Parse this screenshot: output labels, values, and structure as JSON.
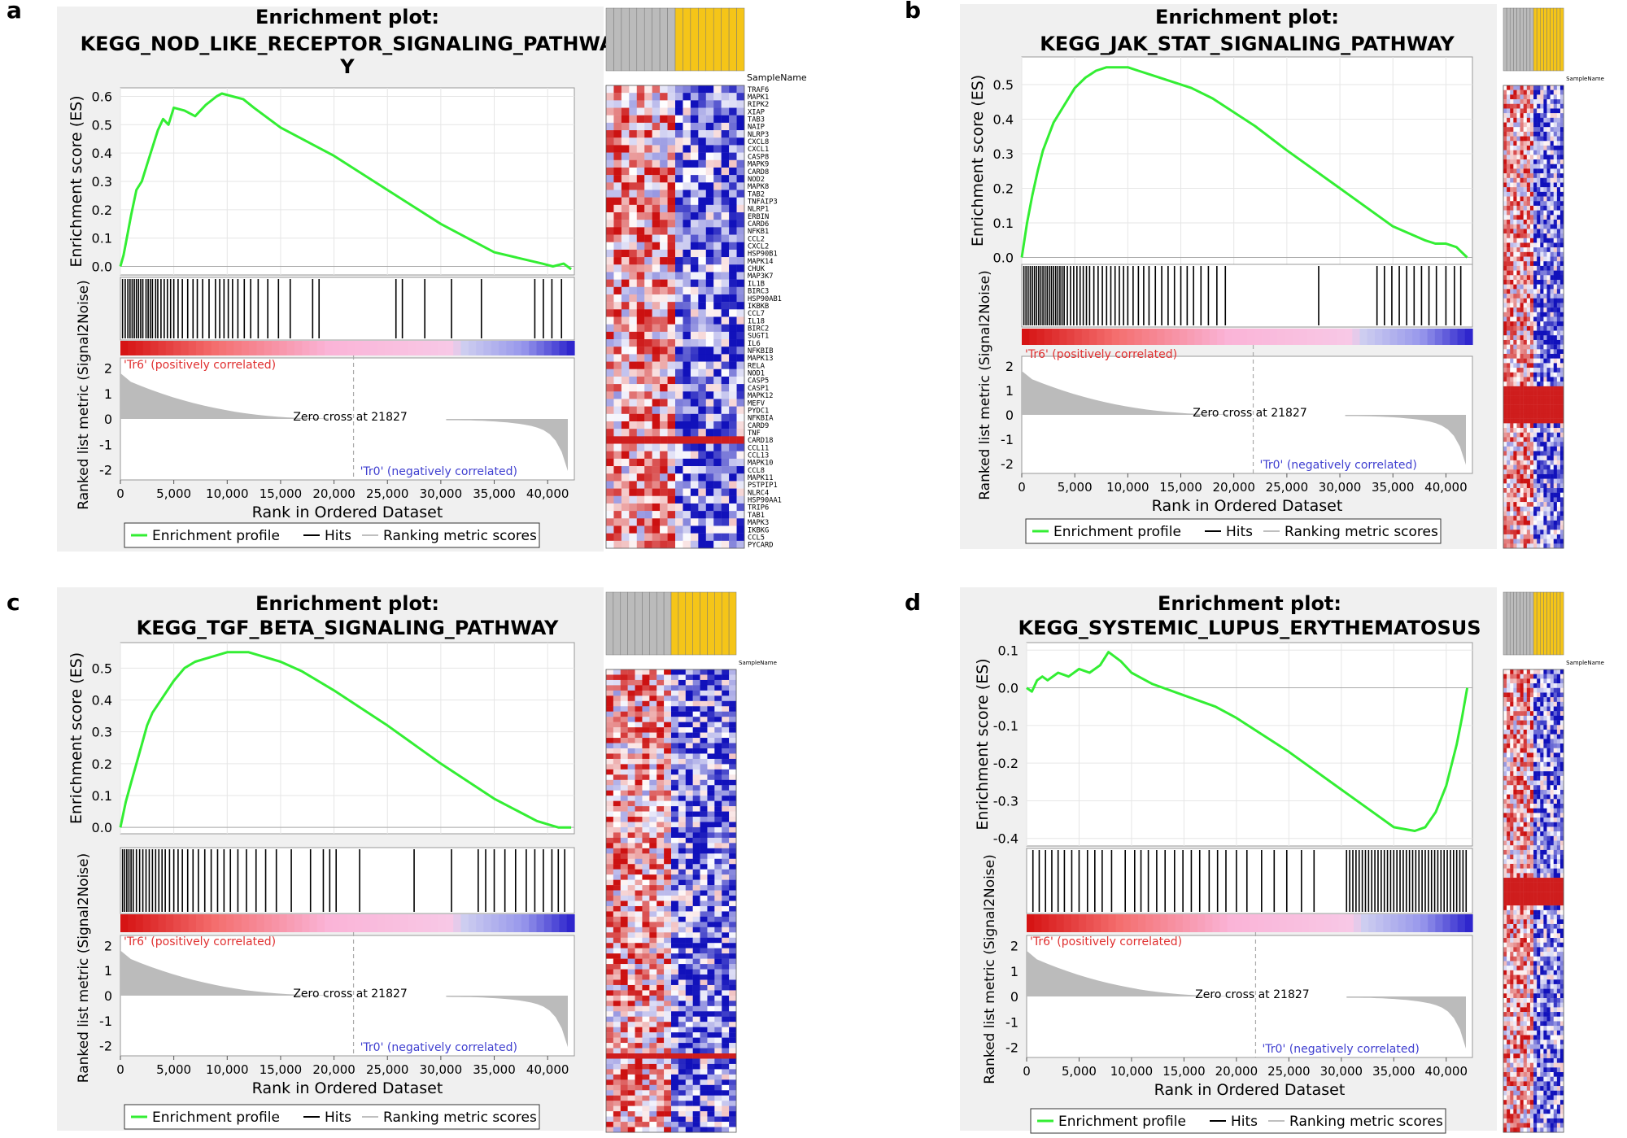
{
  "figure": {
    "x_axis_label": "Rank in Ordered Dataset",
    "es_axis_label": "Enrichment score (ES)",
    "metric_axis_label": "Ranked list metric (Signal2Noise)",
    "zero_cross_label": "Zero cross at 21827",
    "pos_label": "'Tr6' (positively correlated)",
    "neg_label": "'Tr0' (negatively correlated)",
    "legend": {
      "profile": "Enrichment profile",
      "hits": "Hits",
      "metric": "Ranking metric scores"
    },
    "heatmap_header": "SampleName",
    "colors": {
      "curve": "#33ee33",
      "panel_bg": "#f0f0f0",
      "plot_bg": "#ffffff",
      "metric_fill": "#bbbbbb",
      "heat_red": "#cc1111",
      "heat_blue": "#1111bb",
      "group_a": "#bbbbbb",
      "group_b": "#f5c518",
      "pos_text": "#e03030",
      "neg_text": "#4040d0"
    }
  },
  "chart_data": [
    {
      "panel_label": "a",
      "type": "line",
      "title_line1": "Enrichment plot:",
      "title_line2": "KEGG_NOD_LIKE_RECEPTOR_SIGNALING_PATHWA",
      "title_line3": "Y",
      "xlabel": "Rank in Ordered Dataset",
      "ylabel": "Enrichment score (ES)",
      "xlim": [
        0,
        42500
      ],
      "ylim": [
        -0.03,
        0.63
      ],
      "x_ticks": [
        0,
        5000,
        10000,
        15000,
        20000,
        25000,
        30000,
        35000,
        40000
      ],
      "x_tick_labels": [
        "0",
        "5,000",
        "10,000",
        "15,000",
        "20,000",
        "25,000",
        "30,000",
        "35,000",
        "40,000"
      ],
      "es_ticks": [
        0.0,
        0.1,
        0.2,
        0.3,
        0.4,
        0.5,
        0.6
      ],
      "es_tick_labels": [
        "0.0",
        "0.1",
        "0.2",
        "0.3",
        "0.4",
        "0.5",
        "0.6"
      ],
      "metric_ticks": [
        2,
        1,
        0,
        -1,
        -2
      ],
      "metric_tick_labels": [
        "2",
        "1",
        "0",
        "-1",
        "-2"
      ],
      "zero_cross": 21827,
      "es_curve": {
        "x": [
          0,
          300,
          700,
          1000,
          1500,
          2000,
          2500,
          3000,
          3500,
          4000,
          4500,
          5000,
          6000,
          7000,
          8000,
          9000,
          9500,
          10500,
          11500,
          12500,
          15000,
          20000,
          25000,
          30000,
          35000,
          39500,
          40500,
          41500,
          42200
        ],
        "y": [
          0.0,
          0.04,
          0.12,
          0.18,
          0.27,
          0.3,
          0.36,
          0.42,
          0.48,
          0.52,
          0.5,
          0.56,
          0.55,
          0.53,
          0.57,
          0.6,
          0.61,
          0.6,
          0.59,
          0.56,
          0.49,
          0.39,
          0.27,
          0.15,
          0.05,
          0.01,
          0.0,
          0.01,
          -0.01
        ]
      },
      "hits": [
        200,
        450,
        700,
        900,
        1100,
        1300,
        1500,
        1700,
        1900,
        2100,
        2400,
        2600,
        2800,
        3000,
        3300,
        3500,
        3800,
        4100,
        4400,
        4700,
        5000,
        5400,
        5800,
        6300,
        6800,
        7200,
        7700,
        8300,
        8900,
        9300,
        9700,
        10100,
        10500,
        11000,
        11600,
        12200,
        12900,
        13800,
        14800,
        15900,
        18000,
        18600,
        25800,
        26400,
        28500,
        31000,
        33800,
        38800,
        39600,
        40400,
        41300
      ],
      "heatmap": {
        "group_a_samples": 9,
        "group_b_samples": 9,
        "genes": [
          "TRAF6",
          "MAPK1",
          "RIPK2",
          "XIAP",
          "TAB3",
          "NAIP",
          "NLRP3",
          "CXCL8",
          "CXCL1",
          "CASP8",
          "MAPK9",
          "CARD8",
          "NOD2",
          "MAPK8",
          "TAB2",
          "TNFAIP3",
          "NLRP1",
          "ERBIN",
          "CARD6",
          "NFKB1",
          "CCL2",
          "CXCL2",
          "HSP90B1",
          "MAPK14",
          "CHUK",
          "MAP3K7",
          "IL1B",
          "BIRC3",
          "HSP90AB1",
          "IKBKB",
          "CCL7",
          "IL18",
          "BIRC2",
          "SUGT1",
          "IL6",
          "NFKBIB",
          "MAPK13",
          "RELA",
          "NOD1",
          "CASP5",
          "CASP1",
          "MAPK12",
          "MEFV",
          "PYDC1",
          "NFKBIA",
          "CARD9",
          "TNF",
          "CARD18",
          "CCL11",
          "CCL13",
          "MAPK10",
          "CCL8",
          "MAPK11",
          "PSTPIP1",
          "NLRC4",
          "HSP90AA1",
          "TRIP6",
          "TAB1",
          "MAPK3",
          "IKBKG",
          "CCL5",
          "PYCARD"
        ]
      }
    },
    {
      "panel_label": "b",
      "type": "line",
      "title_line1": "Enrichment plot:",
      "title_line2": "KEGG_JAK_STAT_SIGNALING_PATHWAY",
      "xlabel": "Rank in Ordered Dataset",
      "ylabel": "Enrichment score (ES)",
      "xlim": [
        0,
        42500
      ],
      "ylim": [
        -0.02,
        0.58
      ],
      "x_ticks": [
        0,
        5000,
        10000,
        15000,
        20000,
        25000,
        30000,
        35000,
        40000
      ],
      "x_tick_labels": [
        "0",
        "5,000",
        "10,000",
        "15,000",
        "20,000",
        "25,000",
        "30,000",
        "35,000",
        "40,000"
      ],
      "es_ticks": [
        0.0,
        0.1,
        0.2,
        0.3,
        0.4,
        0.5
      ],
      "es_tick_labels": [
        "0.0",
        "0.1",
        "0.2",
        "0.3",
        "0.4",
        "0.5"
      ],
      "metric_ticks": [
        2,
        1,
        0,
        -1,
        -2
      ],
      "metric_tick_labels": [
        "2",
        "1",
        "0",
        "-1",
        "-2"
      ],
      "zero_cross": 21827,
      "es_curve": {
        "x": [
          0,
          500,
          1000,
          1500,
          2000,
          3000,
          4000,
          5000,
          6000,
          7000,
          8000,
          9000,
          10000,
          11000,
          12000,
          14000,
          16000,
          18000,
          20000,
          22000,
          25000,
          30000,
          35000,
          38000,
          39000,
          40000,
          41000,
          42000
        ],
        "y": [
          0.0,
          0.1,
          0.18,
          0.25,
          0.31,
          0.39,
          0.44,
          0.49,
          0.52,
          0.54,
          0.55,
          0.55,
          0.55,
          0.54,
          0.53,
          0.51,
          0.49,
          0.46,
          0.42,
          0.38,
          0.31,
          0.2,
          0.09,
          0.05,
          0.04,
          0.04,
          0.03,
          0.0
        ]
      },
      "hits": [
        200,
        400,
        600,
        800,
        1000,
        1200,
        1400,
        1600,
        1800,
        2000,
        2200,
        2400,
        2600,
        2800,
        3000,
        3200,
        3400,
        3600,
        3800,
        4000,
        4300,
        4600,
        4900,
        5200,
        5500,
        5800,
        6100,
        6400,
        6800,
        7200,
        7600,
        8000,
        8400,
        8800,
        9200,
        9600,
        10000,
        10500,
        11000,
        11500,
        12000,
        12600,
        13200,
        13800,
        14400,
        15000,
        15600,
        16200,
        16900,
        17600,
        18400,
        19200,
        28000,
        33500,
        34200,
        34900,
        35600,
        36300,
        37000,
        37700,
        38400,
        39100,
        40000,
        40800,
        41400
      ],
      "heatmap": {
        "group_a_samples": 9,
        "group_b_samples": 9,
        "genes": []
      }
    },
    {
      "panel_label": "c",
      "type": "line",
      "title_line1": "Enrichment plot:",
      "title_line2": "KEGG_TGF_BETA_SIGNALING_PATHWAY",
      "xlabel": "Rank in Ordered Dataset",
      "ylabel": "Enrichment score (ES)",
      "xlim": [
        0,
        42500
      ],
      "ylim": [
        -0.02,
        0.58
      ],
      "x_ticks": [
        0,
        5000,
        10000,
        15000,
        20000,
        25000,
        30000,
        35000,
        40000
      ],
      "x_tick_labels": [
        "0",
        "5,000",
        "10,000",
        "15,000",
        "20,000",
        "25,000",
        "30,000",
        "35,000",
        "40,000"
      ],
      "es_ticks": [
        0.0,
        0.1,
        0.2,
        0.3,
        0.4,
        0.5
      ],
      "es_tick_labels": [
        "0.0",
        "0.1",
        "0.2",
        "0.3",
        "0.4",
        "0.5"
      ],
      "metric_ticks": [
        2,
        1,
        0,
        -1,
        -2
      ],
      "metric_tick_labels": [
        "2",
        "1",
        "0",
        "-1",
        "-2"
      ],
      "zero_cross": 21827,
      "es_curve": {
        "x": [
          0,
          500,
          1000,
          1500,
          2000,
          2500,
          3000,
          4000,
          5000,
          6000,
          7000,
          8000,
          9000,
          10000,
          11000,
          12000,
          13000,
          15000,
          17000,
          20000,
          25000,
          30000,
          35000,
          39000,
          40000,
          41000,
          42200
        ],
        "y": [
          0.0,
          0.08,
          0.14,
          0.2,
          0.26,
          0.32,
          0.36,
          0.41,
          0.46,
          0.5,
          0.52,
          0.53,
          0.54,
          0.55,
          0.55,
          0.55,
          0.54,
          0.52,
          0.49,
          0.43,
          0.32,
          0.2,
          0.09,
          0.02,
          0.01,
          0.0,
          0.0
        ]
      },
      "hits": [
        200,
        400,
        600,
        800,
        1000,
        1200,
        1500,
        1800,
        2100,
        2400,
        2700,
        3000,
        3300,
        3600,
        3900,
        4200,
        4600,
        5000,
        5400,
        5800,
        6300,
        6800,
        7300,
        7900,
        8500,
        9100,
        9700,
        10300,
        11000,
        11800,
        12700,
        13600,
        14600,
        16000,
        17800,
        19000,
        19600,
        20200,
        22400,
        27500,
        31000,
        33500,
        34200,
        35000,
        36000,
        37000,
        38000,
        38800,
        39600,
        40400,
        41000,
        41600
      ],
      "heatmap": {
        "group_a_samples": 9,
        "group_b_samples": 9,
        "genes": []
      }
    },
    {
      "panel_label": "d",
      "type": "line",
      "title_line1": "Enrichment plot:",
      "title_line2": "KEGG_SYSTEMIC_LUPUS_ERYTHEMATOSUS",
      "xlabel": "Rank in Ordered Dataset",
      "ylabel": "Enrichment score (ES)",
      "xlim": [
        0,
        42500
      ],
      "ylim": [
        -0.42,
        0.12
      ],
      "x_ticks": [
        0,
        5000,
        10000,
        15000,
        20000,
        25000,
        30000,
        35000,
        40000
      ],
      "x_tick_labels": [
        "0",
        "5,000",
        "10,000",
        "15,000",
        "20,000",
        "25,000",
        "30,000",
        "35,000",
        "40,000"
      ],
      "es_ticks": [
        0.1,
        0.0,
        -0.1,
        -0.2,
        -0.3,
        -0.4
      ],
      "es_tick_labels": [
        "0.1",
        "0.0",
        "-0.1",
        "-0.2",
        "-0.3",
        "-0.4"
      ],
      "metric_ticks": [
        2,
        1,
        0,
        -1,
        -2
      ],
      "metric_tick_labels": [
        "2",
        "1",
        "0",
        "-1",
        "-2"
      ],
      "zero_cross": 21827,
      "es_curve": {
        "x": [
          0,
          500,
          1000,
          1500,
          2000,
          3000,
          4000,
          5000,
          6000,
          7000,
          7800,
          9000,
          10000,
          12000,
          15000,
          18000,
          20000,
          25000,
          30000,
          33000,
          35000,
          37000,
          38000,
          39000,
          40000,
          41000,
          41500,
          42000
        ],
        "y": [
          0.0,
          -0.01,
          0.02,
          0.03,
          0.02,
          0.04,
          0.03,
          0.05,
          0.04,
          0.06,
          0.095,
          0.07,
          0.04,
          0.01,
          -0.02,
          -0.05,
          -0.08,
          -0.17,
          -0.27,
          -0.33,
          -0.37,
          -0.38,
          -0.37,
          -0.33,
          -0.26,
          -0.15,
          -0.08,
          0.0
        ]
      },
      "hits": [
        600,
        1200,
        1800,
        2400,
        3000,
        3600,
        4300,
        5000,
        5800,
        6500,
        7200,
        8100,
        9400,
        10300,
        10900,
        11600,
        12400,
        13200,
        14100,
        14900,
        15700,
        16500,
        17400,
        18200,
        19000,
        20000,
        21000,
        22400,
        23600,
        24800,
        26200,
        27400,
        30500,
        30800,
        31100,
        31400,
        31700,
        32000,
        32300,
        32600,
        32900,
        33200,
        33500,
        33800,
        34100,
        34400,
        34700,
        35000,
        35300,
        35600,
        35900,
        36200,
        36500,
        36800,
        37100,
        37400,
        37700,
        38000,
        38300,
        38600,
        38900,
        39200,
        39500,
        39800,
        40100,
        40400,
        40700,
        41000,
        41300,
        41600,
        41900
      ],
      "heatmap": {
        "group_a_samples": 9,
        "group_b_samples": 9,
        "genes": []
      }
    }
  ]
}
